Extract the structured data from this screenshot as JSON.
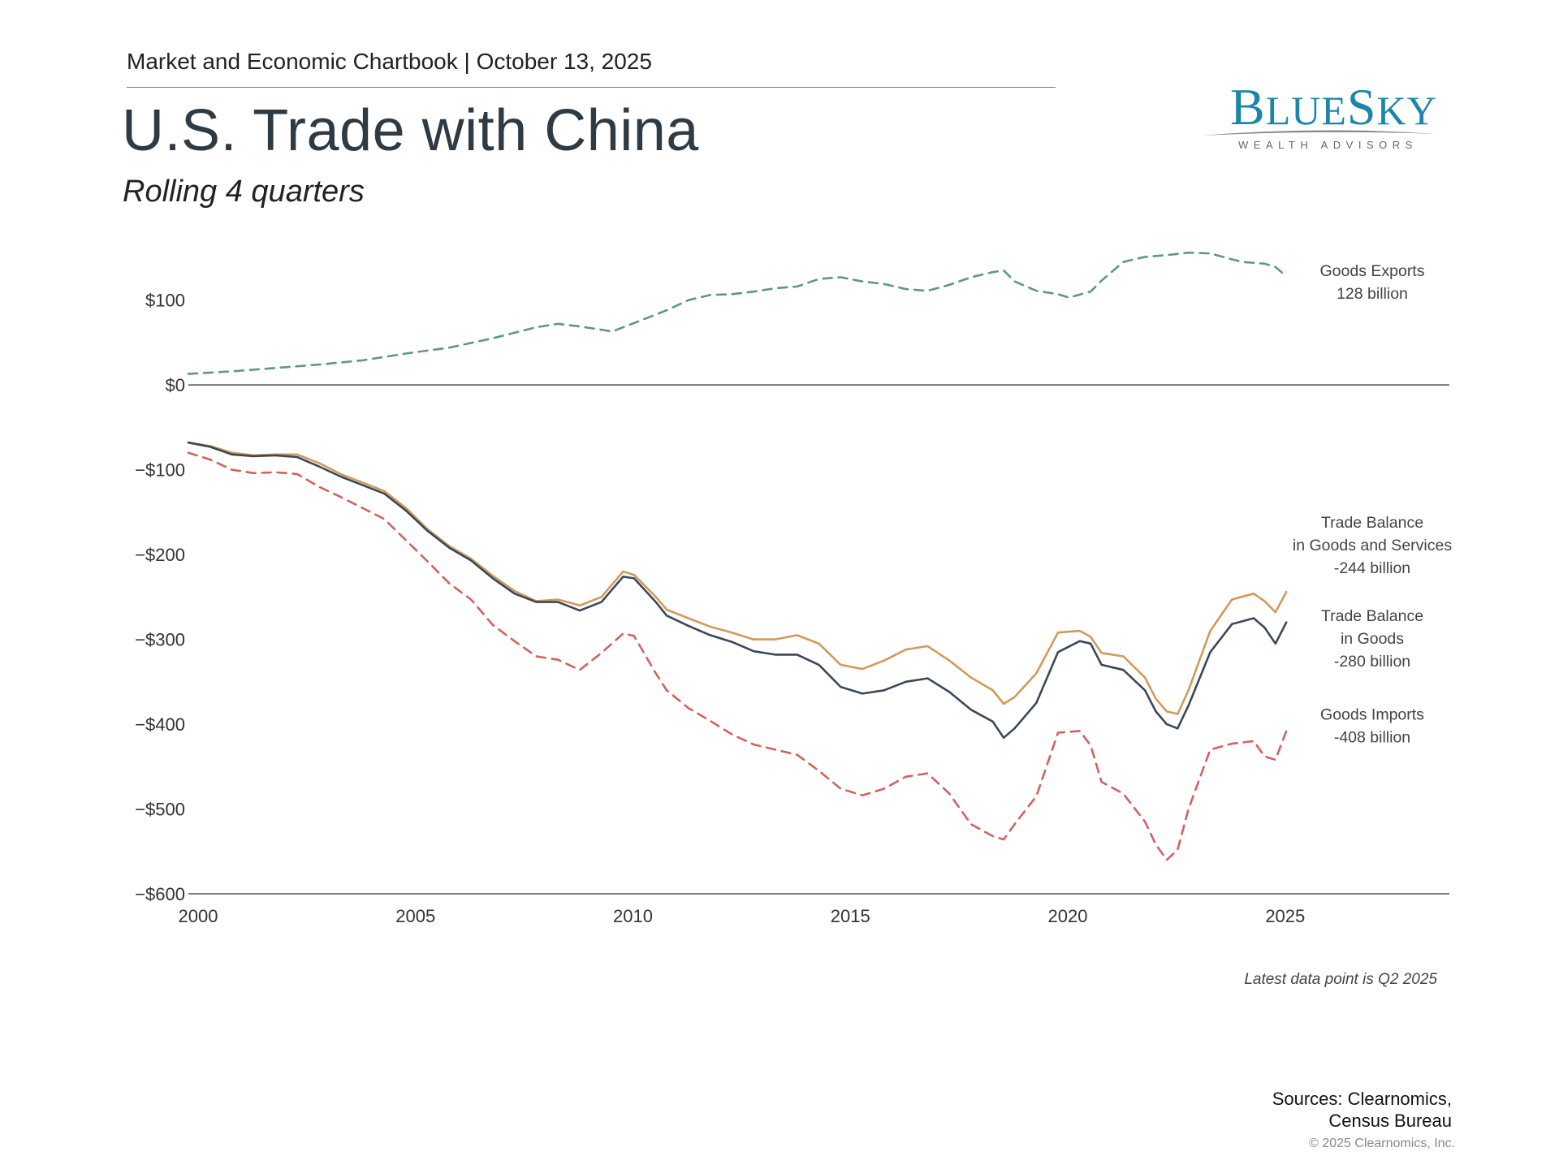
{
  "header": {
    "chartbook": "Market and Economic Chartbook | October 13, 2025",
    "title": "U.S. Trade with China",
    "subtitle": "Rolling 4 quarters"
  },
  "logo": {
    "word_b": "B",
    "word_lue": "LUE",
    "word_s": "S",
    "word_ky": "KY",
    "tagline": "WEALTH ADVISORS"
  },
  "note": "Latest data point is Q2 2025",
  "sources": {
    "line1": "Sources: Clearnomics,",
    "line2": "Census Bureau"
  },
  "copyright": "© 2025 Clearnomics, Inc.",
  "colors": {
    "exports": "#5e9a78",
    "imports": "#d2625f",
    "balance_gs": "#d19a59",
    "balance_goods": "#3a4858",
    "axis": "#555555"
  },
  "chart_data": {
    "type": "line",
    "xlim": [
      2000,
      2029
    ],
    "ylim": [
      -600,
      160
    ],
    "x_ticks": [
      {
        "value": 2000,
        "label": "2000"
      },
      {
        "value": 2005,
        "label": "2005"
      },
      {
        "value": 2010,
        "label": "2010"
      },
      {
        "value": 2015,
        "label": "2015"
      },
      {
        "value": 2020,
        "label": "2020"
      },
      {
        "value": 2025,
        "label": "2025"
      }
    ],
    "y_ticks": [
      {
        "value": 100,
        "label": "$100"
      },
      {
        "value": 0,
        "label": "$0"
      },
      {
        "value": -100,
        "label": "−$100"
      },
      {
        "value": -200,
        "label": "−$200"
      },
      {
        "value": -300,
        "label": "−$300"
      },
      {
        "value": -400,
        "label": "−$400"
      },
      {
        "value": -500,
        "label": "−$500"
      },
      {
        "value": -600,
        "label": "−$600"
      }
    ],
    "series": [
      {
        "key": "exports",
        "dashed": true,
        "label_lines": [
          "Goods Exports",
          "128 billion"
        ],
        "label_value": 115,
        "points": [
          [
            2000,
            13
          ],
          [
            2001,
            16
          ],
          [
            2002,
            20
          ],
          [
            2003,
            24
          ],
          [
            2004,
            29
          ],
          [
            2005,
            37
          ],
          [
            2006,
            44
          ],
          [
            2007,
            55
          ],
          [
            2008,
            68
          ],
          [
            2008.5,
            72
          ],
          [
            2009,
            69
          ],
          [
            2009.75,
            63
          ],
          [
            2010.5,
            78
          ],
          [
            2011,
            88
          ],
          [
            2011.5,
            100
          ],
          [
            2012,
            106
          ],
          [
            2012.5,
            107
          ],
          [
            2013,
            110
          ],
          [
            2013.5,
            114
          ],
          [
            2014,
            116
          ],
          [
            2014.5,
            125
          ],
          [
            2015,
            127
          ],
          [
            2015.5,
            122
          ],
          [
            2016,
            119
          ],
          [
            2016.5,
            113
          ],
          [
            2017,
            111
          ],
          [
            2017.5,
            118
          ],
          [
            2018,
            127
          ],
          [
            2018.5,
            133
          ],
          [
            2018.75,
            135
          ],
          [
            2019,
            122
          ],
          [
            2019.5,
            111
          ],
          [
            2020,
            107
          ],
          [
            2020.25,
            103
          ],
          [
            2020.75,
            110
          ],
          [
            2021,
            123
          ],
          [
            2021.5,
            145
          ],
          [
            2022,
            151
          ],
          [
            2022.5,
            153
          ],
          [
            2023,
            156
          ],
          [
            2023.5,
            155
          ],
          [
            2024,
            148
          ],
          [
            2024.25,
            145
          ],
          [
            2024.75,
            143
          ],
          [
            2025,
            139
          ],
          [
            2025.25,
            128
          ]
        ]
      },
      {
        "key": "balance_gs",
        "dashed": false,
        "label_lines": [
          "Trade Balance",
          "in Goods and Services",
          "-244 billion"
        ],
        "label_value": -195,
        "points": [
          [
            2000,
            -68
          ],
          [
            2000.5,
            -72
          ],
          [
            2001,
            -80
          ],
          [
            2001.5,
            -83
          ],
          [
            2002,
            -82
          ],
          [
            2002.5,
            -82
          ],
          [
            2003,
            -92
          ],
          [
            2003.5,
            -105
          ],
          [
            2004,
            -115
          ],
          [
            2004.5,
            -125
          ],
          [
            2005,
            -145
          ],
          [
            2005.5,
            -170
          ],
          [
            2006,
            -190
          ],
          [
            2006.5,
            -205
          ],
          [
            2007,
            -225
          ],
          [
            2007.5,
            -243
          ],
          [
            2008,
            -255
          ],
          [
            2008.5,
            -253
          ],
          [
            2009,
            -260
          ],
          [
            2009.5,
            -250
          ],
          [
            2010,
            -220
          ],
          [
            2010.25,
            -224
          ],
          [
            2010.75,
            -250
          ],
          [
            2011,
            -265
          ],
          [
            2011.5,
            -275
          ],
          [
            2012,
            -285
          ],
          [
            2012.5,
            -292
          ],
          [
            2013,
            -300
          ],
          [
            2013.5,
            -300
          ],
          [
            2014,
            -295
          ],
          [
            2014.5,
            -305
          ],
          [
            2015,
            -330
          ],
          [
            2015.5,
            -335
          ],
          [
            2016,
            -325
          ],
          [
            2016.5,
            -312
          ],
          [
            2017,
            -308
          ],
          [
            2017.5,
            -325
          ],
          [
            2018,
            -345
          ],
          [
            2018.5,
            -360
          ],
          [
            2018.75,
            -376
          ],
          [
            2019,
            -368
          ],
          [
            2019.5,
            -340
          ],
          [
            2020,
            -292
          ],
          [
            2020.5,
            -290
          ],
          [
            2020.75,
            -297
          ],
          [
            2021,
            -316
          ],
          [
            2021.5,
            -320
          ],
          [
            2022,
            -345
          ],
          [
            2022.25,
            -370
          ],
          [
            2022.5,
            -385
          ],
          [
            2022.75,
            -388
          ],
          [
            2023,
            -360
          ],
          [
            2023.5,
            -290
          ],
          [
            2024,
            -253
          ],
          [
            2024.5,
            -246
          ],
          [
            2024.75,
            -255
          ],
          [
            2025,
            -268
          ],
          [
            2025.25,
            -244
          ]
        ]
      },
      {
        "key": "balance_goods",
        "dashed": false,
        "label_lines": [
          "Trade Balance",
          "in Goods",
          "-280 billion"
        ],
        "label_value": -305,
        "points": [
          [
            2000,
            -68
          ],
          [
            2000.5,
            -73
          ],
          [
            2001,
            -82
          ],
          [
            2001.5,
            -84
          ],
          [
            2002,
            -83
          ],
          [
            2002.5,
            -85
          ],
          [
            2003,
            -96
          ],
          [
            2003.5,
            -108
          ],
          [
            2004,
            -118
          ],
          [
            2004.5,
            -128
          ],
          [
            2005,
            -148
          ],
          [
            2005.5,
            -172
          ],
          [
            2006,
            -192
          ],
          [
            2006.5,
            -207
          ],
          [
            2007,
            -228
          ],
          [
            2007.5,
            -246
          ],
          [
            2008,
            -256
          ],
          [
            2008.5,
            -256
          ],
          [
            2009,
            -266
          ],
          [
            2009.5,
            -256
          ],
          [
            2010,
            -226
          ],
          [
            2010.25,
            -228
          ],
          [
            2010.75,
            -256
          ],
          [
            2011,
            -272
          ],
          [
            2011.5,
            -284
          ],
          [
            2012,
            -295
          ],
          [
            2012.5,
            -303
          ],
          [
            2013,
            -314
          ],
          [
            2013.5,
            -318
          ],
          [
            2014,
            -318
          ],
          [
            2014.5,
            -330
          ],
          [
            2015,
            -356
          ],
          [
            2015.5,
            -364
          ],
          [
            2016,
            -360
          ],
          [
            2016.5,
            -350
          ],
          [
            2017,
            -346
          ],
          [
            2017.5,
            -362
          ],
          [
            2018,
            -383
          ],
          [
            2018.5,
            -397
          ],
          [
            2018.75,
            -416
          ],
          [
            2019,
            -405
          ],
          [
            2019.5,
            -375
          ],
          [
            2020,
            -315
          ],
          [
            2020.5,
            -302
          ],
          [
            2020.75,
            -305
          ],
          [
            2021,
            -330
          ],
          [
            2021.5,
            -336
          ],
          [
            2022,
            -360
          ],
          [
            2022.25,
            -385
          ],
          [
            2022.5,
            -400
          ],
          [
            2022.75,
            -405
          ],
          [
            2023,
            -378
          ],
          [
            2023.5,
            -315
          ],
          [
            2024,
            -282
          ],
          [
            2024.5,
            -275
          ],
          [
            2024.75,
            -286
          ],
          [
            2025,
            -305
          ],
          [
            2025.25,
            -280
          ]
        ]
      },
      {
        "key": "imports",
        "dashed": true,
        "label_lines": [
          "Goods Imports",
          "-408 billion"
        ],
        "label_value": -408,
        "points": [
          [
            2000,
            -80
          ],
          [
            2000.5,
            -88
          ],
          [
            2001,
            -100
          ],
          [
            2001.5,
            -104
          ],
          [
            2002,
            -103
          ],
          [
            2002.5,
            -105
          ],
          [
            2003,
            -120
          ],
          [
            2003.5,
            -132
          ],
          [
            2004,
            -145
          ],
          [
            2004.5,
            -158
          ],
          [
            2005,
            -183
          ],
          [
            2005.5,
            -208
          ],
          [
            2006,
            -234
          ],
          [
            2006.5,
            -253
          ],
          [
            2007,
            -283
          ],
          [
            2007.5,
            -302
          ],
          [
            2008,
            -320
          ],
          [
            2008.5,
            -324
          ],
          [
            2009,
            -336
          ],
          [
            2009.5,
            -316
          ],
          [
            2010,
            -293
          ],
          [
            2010.25,
            -296
          ],
          [
            2010.75,
            -340
          ],
          [
            2011,
            -360
          ],
          [
            2011.5,
            -381
          ],
          [
            2012,
            -396
          ],
          [
            2012.5,
            -412
          ],
          [
            2013,
            -424
          ],
          [
            2013.5,
            -430
          ],
          [
            2014,
            -436
          ],
          [
            2014.5,
            -455
          ],
          [
            2015,
            -476
          ],
          [
            2015.5,
            -484
          ],
          [
            2016,
            -476
          ],
          [
            2016.5,
            -462
          ],
          [
            2017,
            -458
          ],
          [
            2017.5,
            -482
          ],
          [
            2018,
            -518
          ],
          [
            2018.5,
            -532
          ],
          [
            2018.75,
            -536
          ],
          [
            2019,
            -518
          ],
          [
            2019.5,
            -485
          ],
          [
            2020,
            -410
          ],
          [
            2020.5,
            -408
          ],
          [
            2020.75,
            -425
          ],
          [
            2021,
            -468
          ],
          [
            2021.5,
            -482
          ],
          [
            2022,
            -515
          ],
          [
            2022.25,
            -542
          ],
          [
            2022.5,
            -560
          ],
          [
            2022.75,
            -548
          ],
          [
            2023,
            -500
          ],
          [
            2023.5,
            -430
          ],
          [
            2024,
            -423
          ],
          [
            2024.5,
            -420
          ],
          [
            2024.75,
            -438
          ],
          [
            2025,
            -442
          ],
          [
            2025.25,
            -408
          ]
        ]
      }
    ]
  }
}
